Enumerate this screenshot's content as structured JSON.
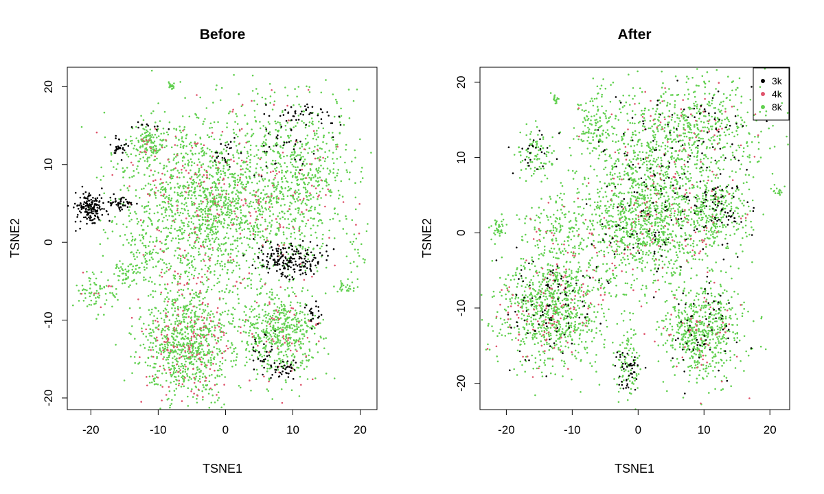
{
  "chart_data": [
    {
      "type": "scatter",
      "title": "Before",
      "xlabel": "TSNE1",
      "ylabel": "TSNE2",
      "xlim": [
        -23.5,
        22.5
      ],
      "ylim": [
        -21.5,
        22.5
      ],
      "xticks": [
        -20,
        -10,
        0,
        10,
        20
      ],
      "yticks": [
        -20,
        -10,
        0,
        10,
        20
      ],
      "grid": false,
      "clusters": [
        {
          "name": "3k",
          "x": -20,
          "y": 4.5,
          "sx": 1.3,
          "sy": 1.0,
          "n": 170
        },
        {
          "name": "3k",
          "x": -15.5,
          "y": 5.2,
          "sx": 0.9,
          "sy": 0.5,
          "n": 45
        },
        {
          "name": "3k",
          "x": -15.8,
          "y": 12.3,
          "sx": 0.6,
          "sy": 0.6,
          "n": 28
        },
        {
          "name": "3k",
          "x": 9.5,
          "y": -2.2,
          "sx": 2.3,
          "sy": 1.1,
          "n": 190
        },
        {
          "name": "3k",
          "x": 9,
          "y": -16.3,
          "sx": 1.0,
          "sy": 0.6,
          "n": 35
        },
        {
          "name": "3k",
          "x": 5.5,
          "y": -14.5,
          "sx": 1.2,
          "sy": 1.2,
          "n": 30
        },
        {
          "name": "3k",
          "x": 13,
          "y": -9.2,
          "sx": 0.6,
          "sy": 0.8,
          "n": 22
        },
        {
          "name": "3k",
          "x": 12,
          "y": 16.5,
          "sx": 2.5,
          "sy": 0.8,
          "n": 40
        },
        {
          "name": "3k",
          "x": 8.5,
          "y": 12.5,
          "sx": 2.5,
          "sy": 2.0,
          "n": 35
        },
        {
          "name": "3k",
          "x": 0,
          "y": 11.5,
          "sx": 1.0,
          "sy": 1.0,
          "n": 20
        },
        {
          "name": "3k",
          "x": -11,
          "y": 15,
          "sx": 1.5,
          "sy": 0.3,
          "n": 12
        },
        {
          "name": "8k",
          "x": -3,
          "y": 5,
          "sx": 6.0,
          "sy": 5.5,
          "n": 1400
        },
        {
          "name": "4k",
          "x": -3,
          "y": 5,
          "sx": 6.0,
          "sy": 5.5,
          "n": 170
        },
        {
          "name": "8k",
          "x": 10,
          "y": 8,
          "sx": 4.5,
          "sy": 5.5,
          "n": 650
        },
        {
          "name": "4k",
          "x": 10,
          "y": 8,
          "sx": 4.5,
          "sy": 5.5,
          "n": 70
        },
        {
          "name": "8k",
          "x": -5.5,
          "y": -12.5,
          "sx": 3.5,
          "sy": 4.0,
          "n": 800
        },
        {
          "name": "4k",
          "x": -5.5,
          "y": -12.5,
          "sx": 3.5,
          "sy": 4.0,
          "n": 170
        },
        {
          "name": "8k",
          "x": 8,
          "y": -11.5,
          "sx": 3.0,
          "sy": 3.0,
          "n": 500
        },
        {
          "name": "4k",
          "x": 8,
          "y": -11.5,
          "sx": 3.0,
          "sy": 3.0,
          "n": 60
        },
        {
          "name": "8k",
          "x": -11.5,
          "y": 12.8,
          "sx": 1.3,
          "sy": 1.1,
          "n": 120
        },
        {
          "name": "4k",
          "x": -11.5,
          "y": 12.8,
          "sx": 1.3,
          "sy": 1.1,
          "n": 10
        },
        {
          "name": "8k",
          "x": -8,
          "y": 20.2,
          "sx": 0.3,
          "sy": 0.3,
          "n": 18
        },
        {
          "name": "8k",
          "x": -12,
          "y": -1,
          "sx": 1.2,
          "sy": 2.0,
          "n": 60
        },
        {
          "name": "8k",
          "x": -15,
          "y": -4,
          "sx": 0.8,
          "sy": 1.0,
          "n": 40
        },
        {
          "name": "8k",
          "x": -19,
          "y": -6.5,
          "sx": 1.5,
          "sy": 1.2,
          "n": 70
        },
        {
          "name": "4k",
          "x": -19,
          "y": -6.5,
          "sx": 1.5,
          "sy": 1.2,
          "n": 8
        },
        {
          "name": "8k",
          "x": 17.5,
          "y": -5.8,
          "sx": 0.8,
          "sy": 0.4,
          "n": 25
        },
        {
          "name": "8k",
          "x": 19.5,
          "y": -1.5,
          "sx": 1.2,
          "sy": 1.2,
          "n": 18
        }
      ]
    },
    {
      "type": "scatter",
      "title": "After",
      "xlabel": "TSNE1",
      "ylabel": "TSNE2",
      "xlim": [
        -24,
        23
      ],
      "ylim": [
        -23.5,
        22
      ],
      "xticks": [
        -20,
        -10,
        0,
        10,
        20
      ],
      "yticks": [
        -20,
        -10,
        0,
        10,
        20
      ],
      "grid": false,
      "legend_position": "top-right",
      "legend": [
        "3k",
        "4k",
        "8k"
      ],
      "clusters": [
        {
          "name": "8k",
          "x": 1,
          "y": 2,
          "sx": 5.0,
          "sy": 4.5,
          "n": 1100
        },
        {
          "name": "4k",
          "x": 1,
          "y": 2,
          "sx": 5.0,
          "sy": 4.5,
          "n": 110
        },
        {
          "name": "3k",
          "x": 1,
          "y": 2,
          "sx": 5.0,
          "sy": 4.5,
          "n": 90
        },
        {
          "name": "8k",
          "x": 7,
          "y": 14,
          "sx": 6.5,
          "sy": 3.5,
          "n": 650
        },
        {
          "name": "4k",
          "x": 7,
          "y": 14,
          "sx": 6.5,
          "sy": 3.5,
          "n": 60
        },
        {
          "name": "3k",
          "x": 7,
          "y": 14,
          "sx": 6.5,
          "sy": 3.5,
          "n": 70
        },
        {
          "name": "8k",
          "x": 12,
          "y": 2.5,
          "sx": 2.5,
          "sy": 2.5,
          "n": 260
        },
        {
          "name": "3k",
          "x": 12,
          "y": 2.5,
          "sx": 2.5,
          "sy": 2.5,
          "n": 70
        },
        {
          "name": "4k",
          "x": 12,
          "y": 2.5,
          "sx": 2.5,
          "sy": 2.5,
          "n": 20
        },
        {
          "name": "8k",
          "x": -13,
          "y": -10,
          "sx": 4.0,
          "sy": 3.5,
          "n": 800
        },
        {
          "name": "4k",
          "x": -13,
          "y": -10,
          "sx": 4.0,
          "sy": 3.5,
          "n": 110
        },
        {
          "name": "3k",
          "x": -13,
          "y": -10,
          "sx": 4.0,
          "sy": 3.5,
          "n": 90
        },
        {
          "name": "8k",
          "x": 10,
          "y": -13,
          "sx": 3.0,
          "sy": 3.5,
          "n": 550
        },
        {
          "name": "4k",
          "x": 10,
          "y": -13,
          "sx": 3.0,
          "sy": 3.5,
          "n": 50
        },
        {
          "name": "3k",
          "x": 10,
          "y": -13,
          "sx": 3.0,
          "sy": 3.5,
          "n": 60
        },
        {
          "name": "8k",
          "x": -1.5,
          "y": -17,
          "sx": 1.0,
          "sy": 2.5,
          "n": 90
        },
        {
          "name": "3k",
          "x": -1.8,
          "y": -18.5,
          "sx": 0.8,
          "sy": 1.5,
          "n": 45
        },
        {
          "name": "8k",
          "x": -12,
          "y": 0,
          "sx": 2.5,
          "sy": 2.5,
          "n": 140
        },
        {
          "name": "4k",
          "x": -12,
          "y": 0,
          "sx": 2.5,
          "sy": 2.5,
          "n": 10
        },
        {
          "name": "8k",
          "x": -15.5,
          "y": 10.5,
          "sx": 1.5,
          "sy": 1.8,
          "n": 90
        },
        {
          "name": "3k",
          "x": -15.5,
          "y": 10.5,
          "sx": 1.5,
          "sy": 1.8,
          "n": 25
        },
        {
          "name": "8k",
          "x": -21,
          "y": 0.5,
          "sx": 0.6,
          "sy": 0.8,
          "n": 40
        },
        {
          "name": "8k",
          "x": -6.5,
          "y": 14,
          "sx": 1.5,
          "sy": 2.0,
          "n": 110
        },
        {
          "name": "8k",
          "x": -12.5,
          "y": 17.5,
          "sx": 0.3,
          "sy": 0.5,
          "n": 15
        },
        {
          "name": "8k",
          "x": 21.3,
          "y": 5.5,
          "sx": 0.5,
          "sy": 0.4,
          "n": 15
        }
      ]
    }
  ],
  "colors": {
    "3k": "#000000",
    "4k": "#DF536B",
    "8k": "#61D04F"
  }
}
